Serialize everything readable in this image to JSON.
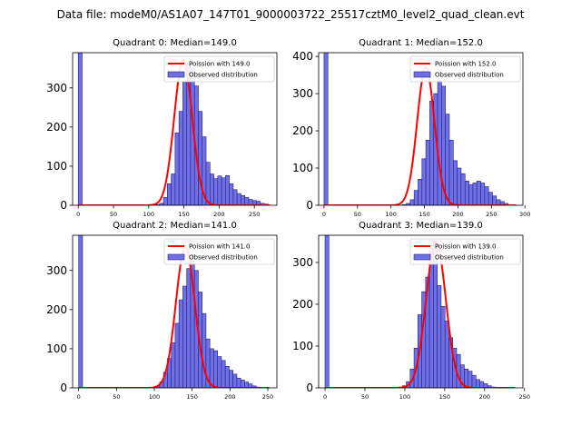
{
  "suptitle": "Data file: modeM0/AS1A07_147T01_9000003722_25517cztM0_level2_quad_clean.evt",
  "chart_data": [
    {
      "type": "bar",
      "title": "Quadrant 0: Median=149.0",
      "xlim": [
        -8,
        282
      ],
      "ylim": [
        0,
        390
      ],
      "xticks": [
        0,
        50,
        100,
        150,
        200,
        250
      ],
      "yticks": [
        0,
        100,
        200,
        300
      ],
      "legend": [
        "Poission with 149.0",
        "Observed distribution"
      ],
      "bin_width": 5.5,
      "bin_edges_start": 0,
      "hist_values": [
        390,
        0,
        0,
        0,
        0,
        0,
        0,
        0,
        0,
        0,
        0,
        0,
        0,
        0,
        0,
        0,
        0,
        0,
        0,
        0,
        2,
        5,
        20,
        55,
        80,
        185,
        240,
        315,
        360,
        350,
        305,
        240,
        175,
        110,
        80,
        68,
        75,
        70,
        76,
        55,
        40,
        30,
        25,
        20,
        15,
        12,
        10,
        5,
        3,
        0
      ],
      "poisson": {
        "mu": 149.0,
        "peak": 370
      }
    },
    {
      "type": "bar",
      "title": "Quadrant 1: Median=152.0",
      "xlim": [
        -8,
        297
      ],
      "ylim": [
        0,
        410
      ],
      "xticks": [
        0,
        50,
        100,
        150,
        200,
        250,
        300
      ],
      "yticks": [
        0,
        100,
        200,
        300,
        400
      ],
      "legend": [
        "Poission with 152.0",
        "Observed distribution"
      ],
      "bin_width": 5.85,
      "bin_edges_start": 0,
      "hist_values": [
        410,
        0,
        0,
        0,
        0,
        0,
        0,
        0,
        0,
        0,
        0,
        0,
        0,
        0,
        0,
        0,
        0,
        0,
        0,
        0,
        2,
        5,
        15,
        40,
        70,
        125,
        175,
        280,
        300,
        335,
        320,
        245,
        175,
        120,
        100,
        85,
        65,
        55,
        60,
        65,
        60,
        50,
        35,
        25,
        15,
        10,
        5,
        2,
        0,
        0
      ],
      "poisson": {
        "mu": 152.0,
        "peak": 370
      }
    },
    {
      "type": "bar",
      "title": "Quadrant 2: Median=141.0",
      "xlim": [
        -8,
        262
      ],
      "ylim": [
        0,
        390
      ],
      "xticks": [
        0,
        50,
        100,
        150,
        200,
        250
      ],
      "yticks": [
        0,
        100,
        200,
        300
      ],
      "legend": [
        "Poission with 141.0",
        "Observed distribution"
      ],
      "bin_width": 5.1,
      "bin_edges_start": 0,
      "hist_values": [
        390,
        0,
        0,
        0,
        0,
        0,
        0,
        0,
        0,
        0,
        0,
        0,
        0,
        0,
        0,
        0,
        0,
        0,
        0,
        0,
        5,
        15,
        40,
        75,
        115,
        165,
        225,
        260,
        305,
        335,
        300,
        245,
        190,
        125,
        100,
        95,
        80,
        70,
        55,
        45,
        35,
        25,
        20,
        15,
        10,
        5,
        2,
        0,
        0,
        0
      ],
      "poisson": {
        "mu": 141.0,
        "peak": 360
      }
    },
    {
      "type": "bar",
      "title": "Quadrant 3: Median=139.0",
      "xlim": [
        -8,
        248
      ],
      "ylim": [
        0,
        365
      ],
      "xticks": [
        0,
        50,
        100,
        150,
        200,
        250
      ],
      "yticks": [
        0,
        100,
        200,
        300
      ],
      "legend": [
        "Poission with 139.0",
        "Observed distribution"
      ],
      "bin_width": 4.85,
      "bin_edges_start": 0,
      "hist_values": [
        365,
        0,
        0,
        0,
        0,
        0,
        0,
        0,
        0,
        0,
        0,
        0,
        0,
        0,
        0,
        0,
        0,
        0,
        0,
        2,
        5,
        15,
        45,
        95,
        175,
        230,
        265,
        340,
        350,
        245,
        195,
        160,
        120,
        95,
        80,
        55,
        45,
        40,
        30,
        20,
        15,
        10,
        5,
        2,
        0,
        0,
        0,
        0,
        0,
        0
      ],
      "poisson": {
        "mu": 139.0,
        "peak": 350
      }
    }
  ]
}
